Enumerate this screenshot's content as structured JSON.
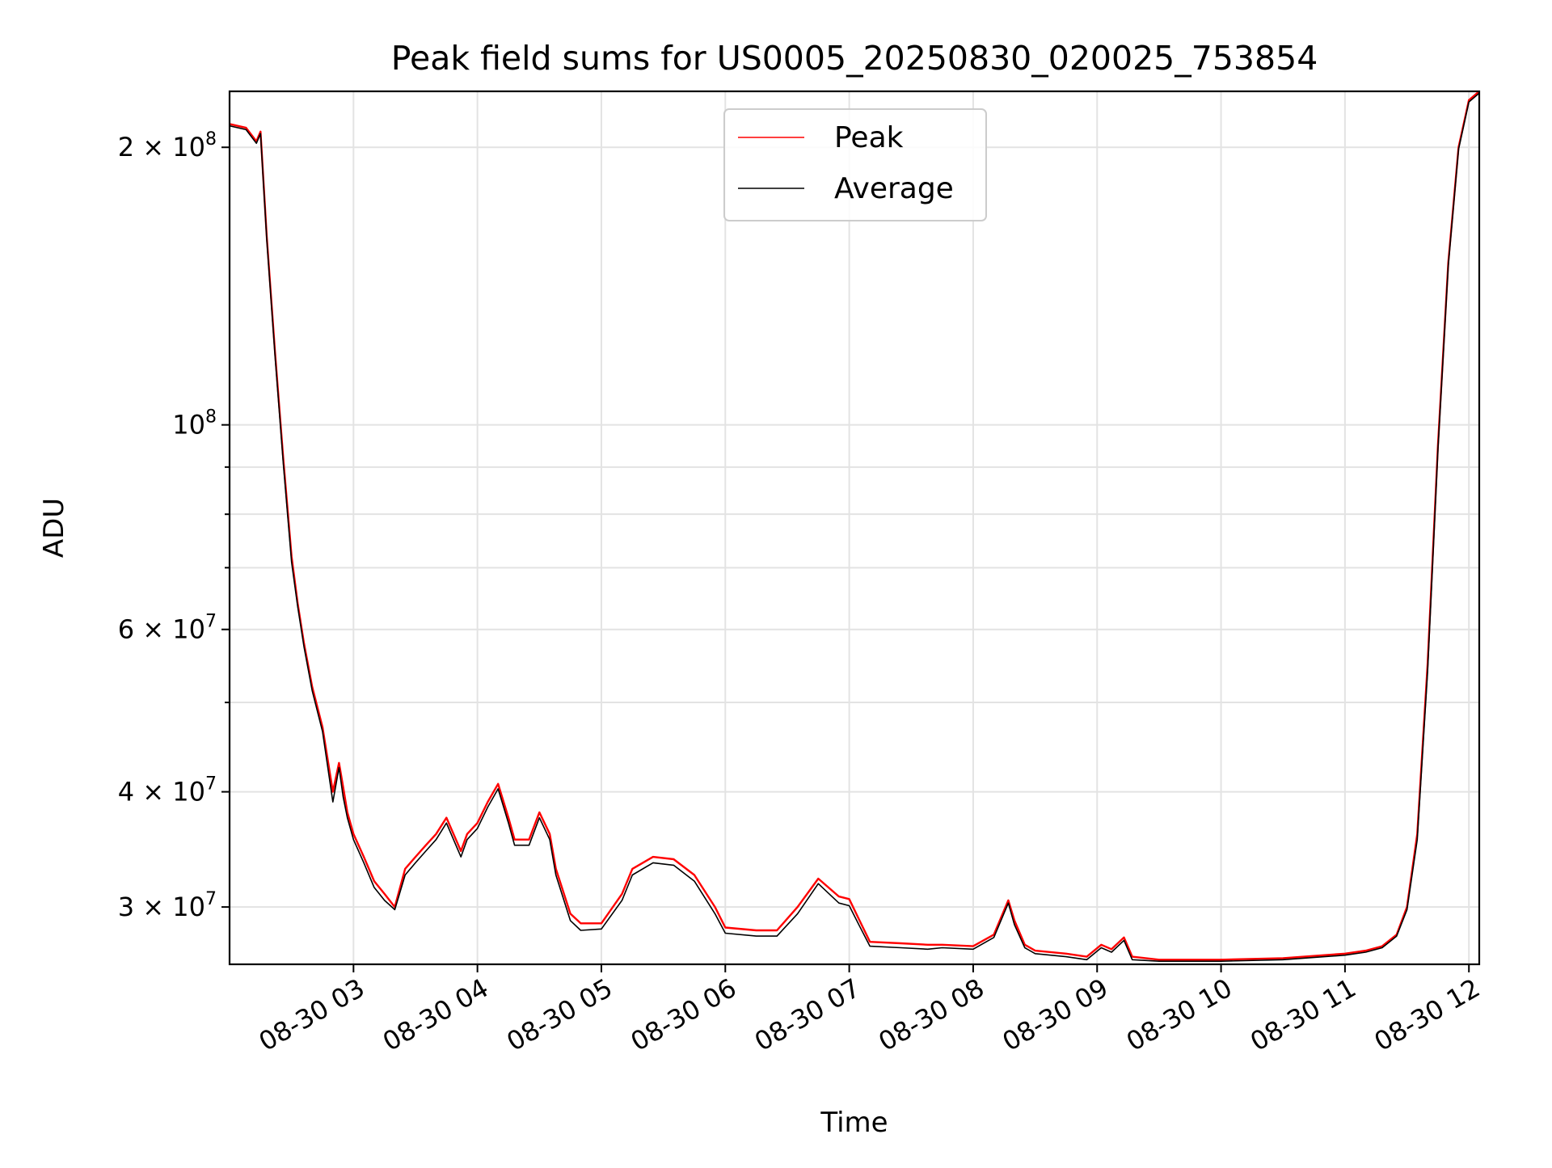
{
  "chart_data": {
    "type": "line",
    "title": "Peak field sums for US0005_20250830_020025_753854",
    "xlabel": "Time",
    "ylabel": "ADU",
    "yscale": "log",
    "ylim": [
      26000000,
      230000000
    ],
    "xlim": [
      "2025-08-30 02:00",
      "2025-08-30 12:05"
    ],
    "grid": true,
    "legend_position": "top-center",
    "x_ticks": [
      "08-30 03",
      "08-30 04",
      "08-30 05",
      "08-30 06",
      "08-30 07",
      "08-30 08",
      "08-30 09",
      "08-30 10",
      "08-30 11",
      "08-30 12"
    ],
    "y_ticks": [
      {
        "value": 30000000,
        "mantissa": "3",
        "exponent": "7"
      },
      {
        "value": 40000000,
        "mantissa": "4",
        "exponent": "7"
      },
      {
        "value": 60000000,
        "mantissa": "6",
        "exponent": "7"
      },
      {
        "value": 100000000,
        "mantissa": "",
        "exponent": "8"
      },
      {
        "value": 200000000,
        "mantissa": "2",
        "exponent": "8"
      }
    ],
    "y_minor_ticks": [
      50000000,
      70000000,
      80000000,
      90000000
    ],
    "series": [
      {
        "name": "Peak",
        "color": "#ff0000",
        "x": [
          "2025-08-30 02:00",
          "2025-08-30 02:08",
          "2025-08-30 02:13",
          "2025-08-30 02:15",
          "2025-08-30 02:18",
          "2025-08-30 02:22",
          "2025-08-30 02:26",
          "2025-08-30 02:30",
          "2025-08-30 02:33",
          "2025-08-30 02:36",
          "2025-08-30 02:40",
          "2025-08-30 02:45",
          "2025-08-30 02:50",
          "2025-08-30 02:53",
          "2025-08-30 02:55",
          "2025-08-30 02:57",
          "2025-08-30 03:00",
          "2025-08-30 03:05",
          "2025-08-30 03:10",
          "2025-08-30 03:15",
          "2025-08-30 03:20",
          "2025-08-30 03:25",
          "2025-08-30 03:30",
          "2025-08-30 03:35",
          "2025-08-30 03:40",
          "2025-08-30 03:45",
          "2025-08-30 03:52",
          "2025-08-30 03:55",
          "2025-08-30 04:00",
          "2025-08-30 04:05",
          "2025-08-30 04:10",
          "2025-08-30 04:15",
          "2025-08-30 04:18",
          "2025-08-30 04:25",
          "2025-08-30 04:30",
          "2025-08-30 04:35",
          "2025-08-30 04:38",
          "2025-08-30 04:45",
          "2025-08-30 04:50",
          "2025-08-30 05:00",
          "2025-08-30 05:10",
          "2025-08-30 05:15",
          "2025-08-30 05:25",
          "2025-08-30 05:35",
          "2025-08-30 05:45",
          "2025-08-30 05:55",
          "2025-08-30 06:00",
          "2025-08-30 06:15",
          "2025-08-30 06:25",
          "2025-08-30 06:35",
          "2025-08-30 06:45",
          "2025-08-30 06:55",
          "2025-08-30 07:00",
          "2025-08-30 07:05",
          "2025-08-30 07:10",
          "2025-08-30 07:25",
          "2025-08-30 07:38",
          "2025-08-30 07:45",
          "2025-08-30 08:00",
          "2025-08-30 08:10",
          "2025-08-30 08:17",
          "2025-08-30 08:20",
          "2025-08-30 08:25",
          "2025-08-30 08:30",
          "2025-08-30 08:45",
          "2025-08-30 08:55",
          "2025-08-30 09:02",
          "2025-08-30 09:07",
          "2025-08-30 09:13",
          "2025-08-30 09:17",
          "2025-08-30 09:30",
          "2025-08-30 10:00",
          "2025-08-30 10:30",
          "2025-08-30 10:50",
          "2025-08-30 11:00",
          "2025-08-30 11:10",
          "2025-08-30 11:18",
          "2025-08-30 11:25",
          "2025-08-30 11:30",
          "2025-08-30 11:35",
          "2025-08-30 11:40",
          "2025-08-30 11:45",
          "2025-08-30 11:50",
          "2025-08-30 11:55",
          "2025-08-30 12:00",
          "2025-08-30 12:05"
        ],
        "y": [
          212000000,
          210000000,
          203000000,
          208000000,
          160000000,
          120000000,
          92000000,
          72000000,
          64000000,
          58000000,
          52000000,
          47000000,
          40000000,
          43000000,
          40500000,
          38000000,
          36000000,
          34000000,
          32000000,
          31000000,
          30000000,
          33000000,
          34000000,
          35000000,
          36000000,
          37500000,
          34500000,
          36000000,
          37000000,
          39000000,
          40800000,
          37500000,
          35500000,
          35500000,
          38000000,
          36000000,
          33000000,
          29500000,
          28800000,
          28800000,
          31000000,
          33000000,
          34000000,
          33800000,
          32500000,
          30000000,
          28500000,
          28300000,
          28300000,
          30000000,
          32200000,
          30800000,
          30600000,
          29000000,
          27500000,
          27400000,
          27300000,
          27300000,
          27200000,
          28000000,
          30500000,
          29000000,
          27300000,
          26900000,
          26700000,
          26500000,
          27300000,
          27000000,
          27800000,
          26500000,
          26300000,
          26300000,
          26400000,
          26600000,
          26700000,
          26900000,
          27200000,
          28000000,
          30000000,
          36000000,
          55000000,
          95000000,
          150000000,
          200000000,
          225000000,
          230000000
        ]
      },
      {
        "name": "Average",
        "color": "#000000",
        "x": [
          "2025-08-30 02:00",
          "2025-08-30 02:08",
          "2025-08-30 02:13",
          "2025-08-30 02:15",
          "2025-08-30 02:18",
          "2025-08-30 02:22",
          "2025-08-30 02:26",
          "2025-08-30 02:30",
          "2025-08-30 02:33",
          "2025-08-30 02:36",
          "2025-08-30 02:40",
          "2025-08-30 02:45",
          "2025-08-30 02:50",
          "2025-08-30 02:53",
          "2025-08-30 02:55",
          "2025-08-30 02:57",
          "2025-08-30 03:00",
          "2025-08-30 03:05",
          "2025-08-30 03:10",
          "2025-08-30 03:15",
          "2025-08-30 03:20",
          "2025-08-30 03:25",
          "2025-08-30 03:30",
          "2025-08-30 03:35",
          "2025-08-30 03:40",
          "2025-08-30 03:45",
          "2025-08-30 03:52",
          "2025-08-30 03:55",
          "2025-08-30 04:00",
          "2025-08-30 04:05",
          "2025-08-30 04:10",
          "2025-08-30 04:15",
          "2025-08-30 04:18",
          "2025-08-30 04:25",
          "2025-08-30 04:30",
          "2025-08-30 04:35",
          "2025-08-30 04:38",
          "2025-08-30 04:45",
          "2025-08-30 04:50",
          "2025-08-30 05:00",
          "2025-08-30 05:10",
          "2025-08-30 05:15",
          "2025-08-30 05:25",
          "2025-08-30 05:35",
          "2025-08-30 05:45",
          "2025-08-30 05:55",
          "2025-08-30 06:00",
          "2025-08-30 06:15",
          "2025-08-30 06:25",
          "2025-08-30 06:35",
          "2025-08-30 06:45",
          "2025-08-30 06:55",
          "2025-08-30 07:00",
          "2025-08-30 07:05",
          "2025-08-30 07:10",
          "2025-08-30 07:25",
          "2025-08-30 07:38",
          "2025-08-30 07:45",
          "2025-08-30 08:00",
          "2025-08-30 08:10",
          "2025-08-30 08:17",
          "2025-08-30 08:20",
          "2025-08-30 08:25",
          "2025-08-30 08:30",
          "2025-08-30 08:45",
          "2025-08-30 08:55",
          "2025-08-30 09:02",
          "2025-08-30 09:07",
          "2025-08-30 09:13",
          "2025-08-30 09:17",
          "2025-08-30 09:30",
          "2025-08-30 10:00",
          "2025-08-30 10:30",
          "2025-08-30 10:50",
          "2025-08-30 11:00",
          "2025-08-30 11:10",
          "2025-08-30 11:18",
          "2025-08-30 11:25",
          "2025-08-30 11:30",
          "2025-08-30 11:35",
          "2025-08-30 11:40",
          "2025-08-30 11:45",
          "2025-08-30 11:50",
          "2025-08-30 11:55",
          "2025-08-30 12:00",
          "2025-08-30 12:05"
        ],
        "y": [
          211000000,
          209000000,
          202000000,
          207000000,
          159000000,
          119000000,
          91000000,
          71000000,
          63500000,
          57500000,
          51500000,
          46500000,
          39000000,
          42500000,
          39500000,
          37500000,
          35500000,
          33500000,
          31500000,
          30500000,
          29800000,
          32500000,
          33500000,
          34500000,
          35500000,
          37000000,
          34000000,
          35500000,
          36500000,
          38500000,
          40300000,
          37000000,
          35000000,
          35000000,
          37500000,
          35500000,
          32500000,
          29000000,
          28300000,
          28400000,
          30500000,
          32500000,
          33500000,
          33300000,
          32000000,
          29500000,
          28100000,
          27900000,
          27900000,
          29500000,
          31800000,
          30300000,
          30100000,
          28600000,
          27200000,
          27100000,
          27000000,
          27100000,
          27000000,
          27800000,
          30300000,
          28700000,
          27100000,
          26700000,
          26500000,
          26300000,
          27100000,
          26800000,
          27600000,
          26300000,
          26200000,
          26200000,
          26300000,
          26500000,
          26600000,
          26800000,
          27100000,
          27900000,
          29800000,
          35500000,
          54000000,
          94000000,
          149000000,
          199000000,
          224000000,
          229000000
        ]
      }
    ]
  }
}
